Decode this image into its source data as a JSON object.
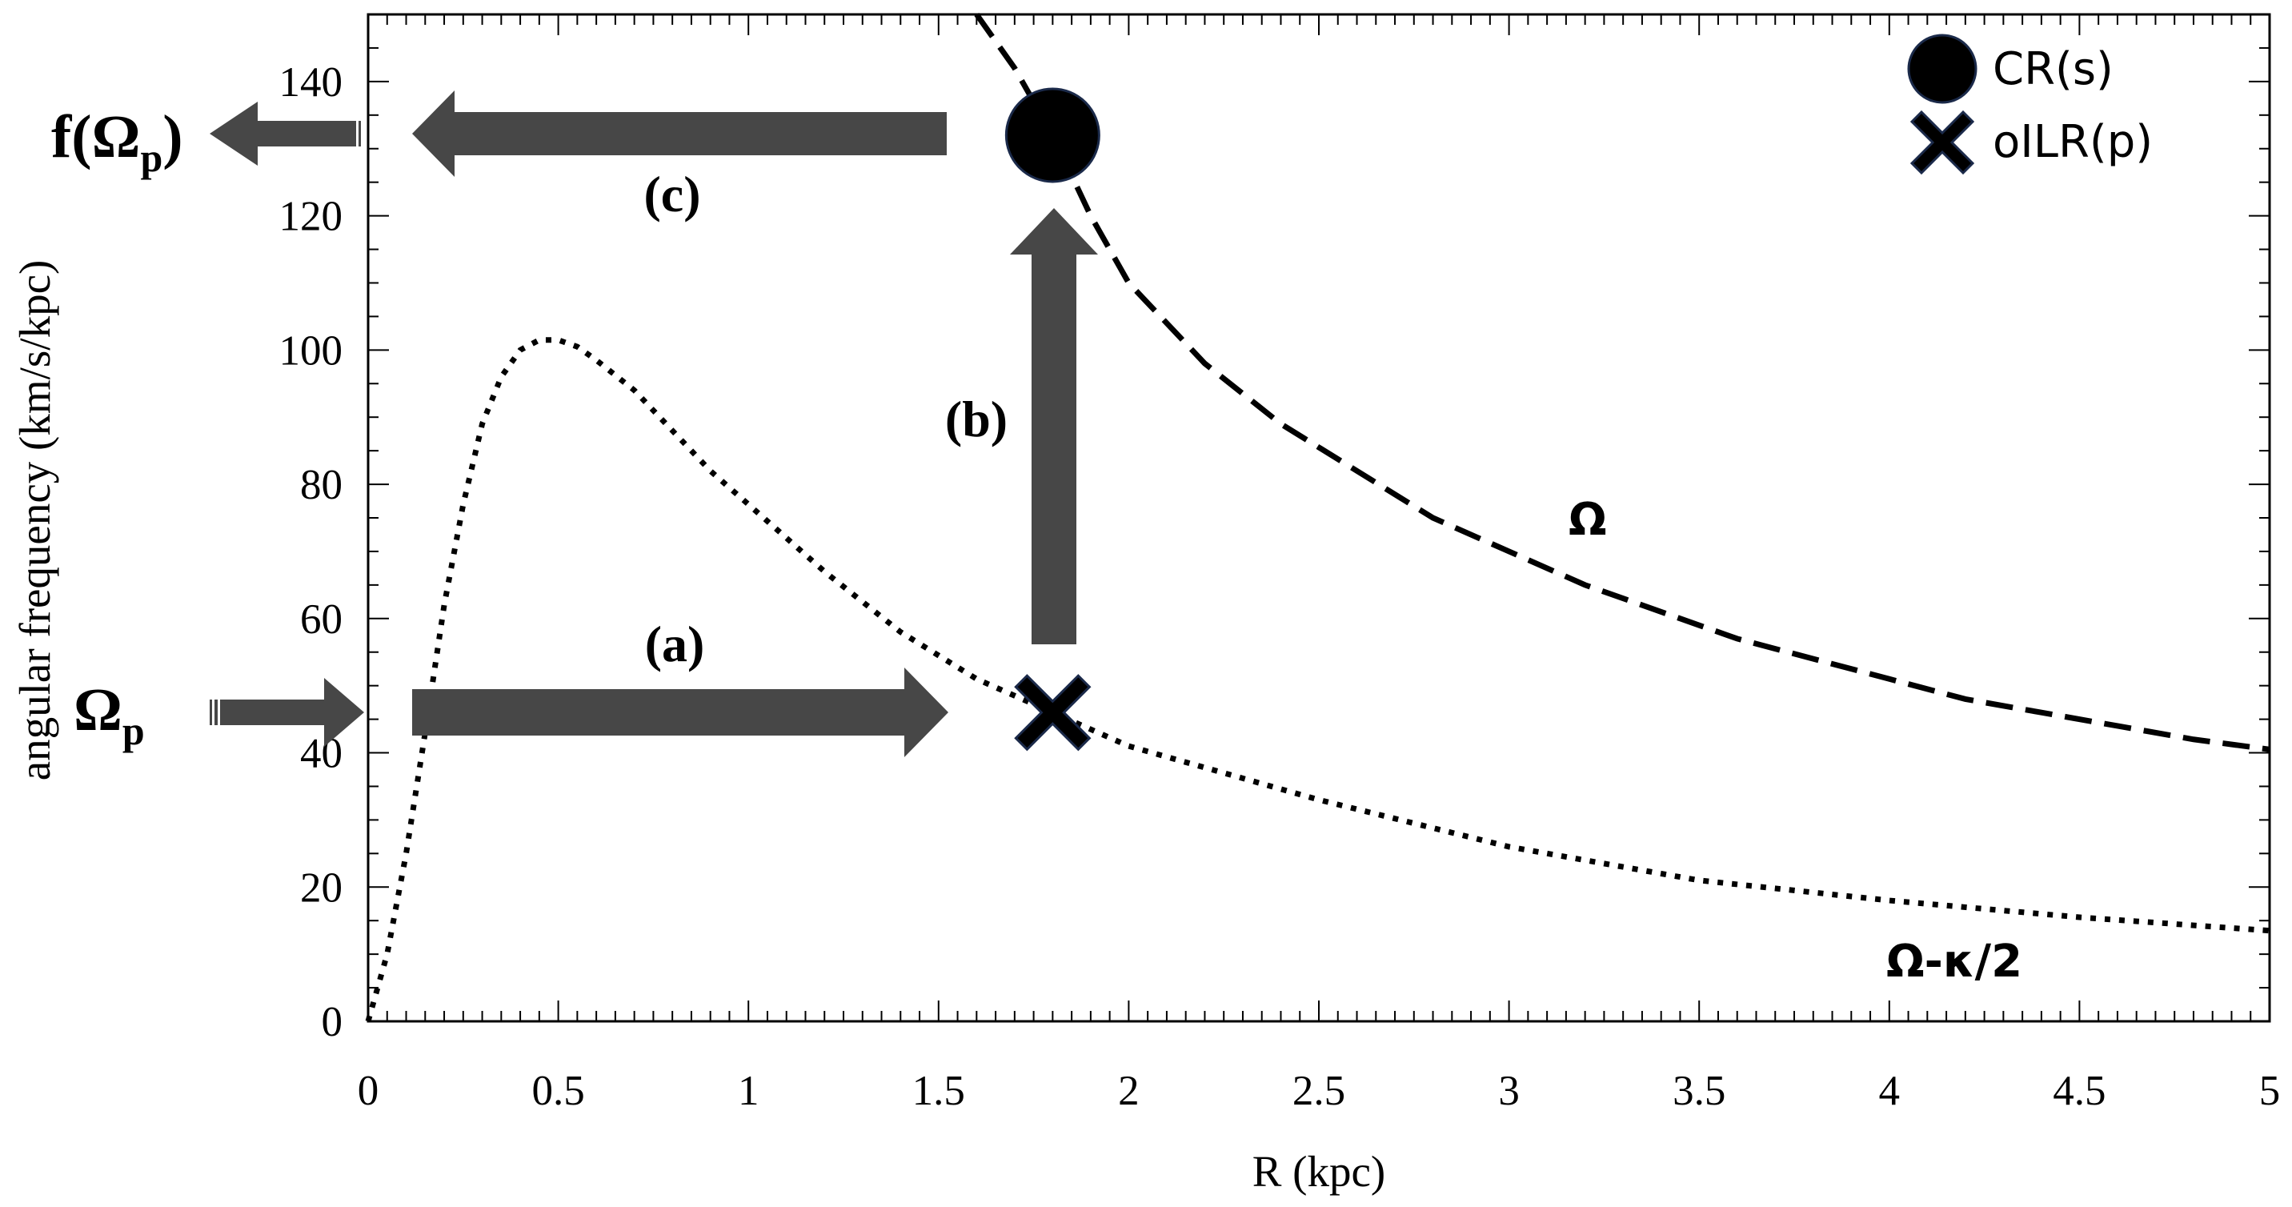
{
  "chart_data": {
    "type": "line",
    "xlabel": "R (kpc)",
    "ylabel": "angular frequency (km/s/kpc)",
    "xlim": [
      0,
      5
    ],
    "ylim": [
      0,
      150
    ],
    "x_ticks": [
      "0",
      "0.5",
      "1",
      "1.5",
      "2",
      "2.5",
      "3",
      "3.5",
      "4",
      "4.5",
      "5"
    ],
    "x_tick_values": [
      0,
      0.5,
      1,
      1.5,
      2,
      2.5,
      3,
      3.5,
      4,
      4.5,
      5
    ],
    "y_ticks": [
      "0",
      "20",
      "40",
      "60",
      "80",
      "100",
      "120",
      "140"
    ],
    "y_tick_values": [
      0,
      20,
      40,
      60,
      80,
      100,
      120,
      140
    ],
    "series": [
      {
        "name": "Ω",
        "style": "dashed",
        "x": [
          1.6,
          1.7,
          1.8,
          1.9,
          2.0,
          2.2,
          2.4,
          2.6,
          2.8,
          3.0,
          3.2,
          3.4,
          3.6,
          3.8,
          4.0,
          4.2,
          4.4,
          4.6,
          4.8,
          5.0
        ],
        "values": [
          150,
          142,
          132,
          120,
          110,
          98,
          89,
          82,
          75,
          70,
          65,
          61,
          57,
          54,
          51,
          48,
          46,
          44,
          42,
          40.5
        ]
      },
      {
        "name": "Ω-κ/2",
        "style": "dotted",
        "x": [
          0,
          0.05,
          0.1,
          0.15,
          0.2,
          0.25,
          0.3,
          0.35,
          0.4,
          0.45,
          0.5,
          0.55,
          0.6,
          0.7,
          0.8,
          0.9,
          1.0,
          1.2,
          1.4,
          1.6,
          1.8,
          2.0,
          2.5,
          3.0,
          3.5,
          4.0,
          4.5,
          5.0
        ],
        "values": [
          0,
          10,
          25,
          43,
          62,
          77,
          89,
          96,
          100,
          101.5,
          101.5,
          100.5,
          98.5,
          94,
          88,
          82,
          77,
          67,
          58,
          51,
          46,
          41,
          33,
          26,
          21,
          18,
          15.5,
          13.5
        ]
      }
    ],
    "markers": [
      {
        "name": "CR(s)",
        "shape": "circle",
        "x": 1.8,
        "y": 132
      },
      {
        "name": "oILR(p)",
        "shape": "cross",
        "x": 1.8,
        "y": 46
      }
    ],
    "legend": {
      "position": "top-right",
      "entries": [
        "CR(s)",
        "oILR(p)"
      ]
    },
    "curve_labels": {
      "omega": "Ω",
      "omega_kappa": "Ω-κ/2"
    },
    "annotations": {
      "step_a": "(a)",
      "step_b": "(b)",
      "step_c": "(c)",
      "omega_p_main": "Ω",
      "omega_p_sub": "p",
      "f_prefix": "f(Ω",
      "f_sub": "p",
      "f_suffix": ")"
    },
    "colors": {
      "arrow": "#474747",
      "line": "#000000",
      "marker_edge": "#1b2a4a"
    }
  }
}
